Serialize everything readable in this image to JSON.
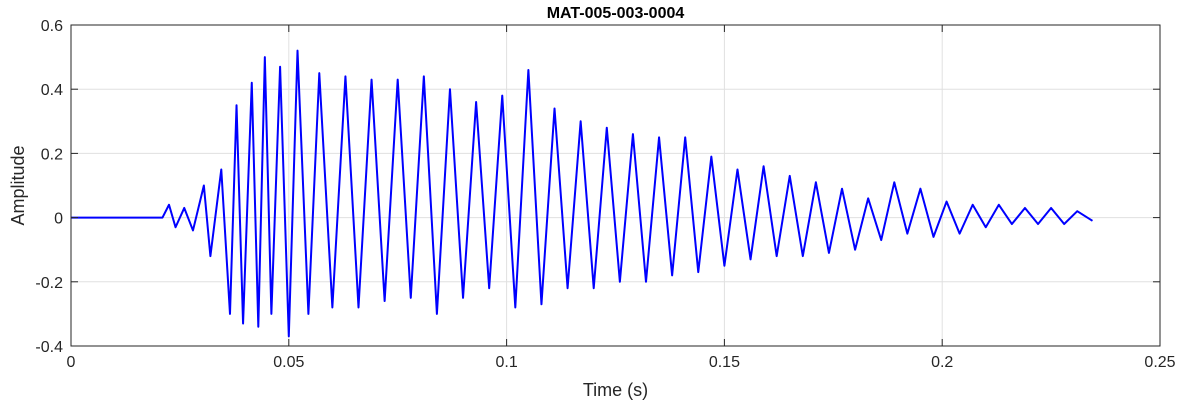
{
  "chart_data": {
    "type": "line",
    "title": "MAT-005-003-0004",
    "xlabel": "Time (s)",
    "ylabel": "Amplitude",
    "xlim": [
      0,
      0.25
    ],
    "ylim": [
      -0.4,
      0.6
    ],
    "xticks": [
      0,
      0.05,
      0.1,
      0.15,
      0.2,
      0.25
    ],
    "xtick_labels": [
      "0",
      "0.05",
      "0.1",
      "0.15",
      "0.2",
      "0.25"
    ],
    "yticks": [
      -0.4,
      -0.2,
      0,
      0.2,
      0.4,
      0.6
    ],
    "ytick_labels": [
      "-0.4",
      "-0.2",
      "0",
      "0.2",
      "0.4",
      "0.6"
    ],
    "grid": true,
    "legend": "none",
    "colors": {
      "line": "#0000ff",
      "grid": "#e0e0e0",
      "axes": "#262626"
    },
    "series": [
      {
        "x": [
          0,
          0.021,
          0.0225,
          0.024,
          0.026,
          0.028,
          0.0305,
          0.032,
          0.0345,
          0.0365,
          0.038,
          0.0395,
          0.0415,
          0.043,
          0.0445,
          0.046,
          0.048,
          0.05,
          0.052,
          0.0545,
          0.057,
          0.06,
          0.063,
          0.066,
          0.069,
          0.072,
          0.075,
          0.078,
          0.081,
          0.084,
          0.087,
          0.09,
          0.093,
          0.096,
          0.099,
          0.102,
          0.105,
          0.108,
          0.111,
          0.114,
          0.117,
          0.12,
          0.123,
          0.126,
          0.129,
          0.132,
          0.135,
          0.138,
          0.141,
          0.144,
          0.147,
          0.15,
          0.153,
          0.156,
          0.159,
          0.162,
          0.165,
          0.168,
          0.171,
          0.174,
          0.177,
          0.18,
          0.183,
          0.186,
          0.189,
          0.192,
          0.195,
          0.198,
          0.201,
          0.204,
          0.207,
          0.21,
          0.213,
          0.216,
          0.219,
          0.222,
          0.225,
          0.228,
          0.231,
          0.2345
        ],
        "y": [
          0,
          0,
          0.04,
          -0.03,
          0.03,
          -0.04,
          0.1,
          -0.12,
          0.15,
          -0.3,
          0.35,
          -0.33,
          0.42,
          -0.34,
          0.5,
          -0.3,
          0.47,
          -0.37,
          0.52,
          -0.3,
          0.45,
          -0.28,
          0.44,
          -0.28,
          0.43,
          -0.26,
          0.43,
          -0.25,
          0.44,
          -0.3,
          0.4,
          -0.25,
          0.36,
          -0.22,
          0.38,
          -0.28,
          0.46,
          -0.27,
          0.34,
          -0.22,
          0.3,
          -0.22,
          0.28,
          -0.2,
          0.26,
          -0.2,
          0.25,
          -0.18,
          0.25,
          -0.17,
          0.19,
          -0.15,
          0.15,
          -0.13,
          0.16,
          -0.12,
          0.13,
          -0.12,
          0.11,
          -0.11,
          0.09,
          -0.1,
          0.06,
          -0.07,
          0.11,
          -0.05,
          0.09,
          -0.06,
          0.05,
          -0.05,
          0.04,
          -0.03,
          0.04,
          -0.02,
          0.03,
          -0.02,
          0.03,
          -0.02,
          0.02,
          -0.01
        ]
      }
    ]
  }
}
